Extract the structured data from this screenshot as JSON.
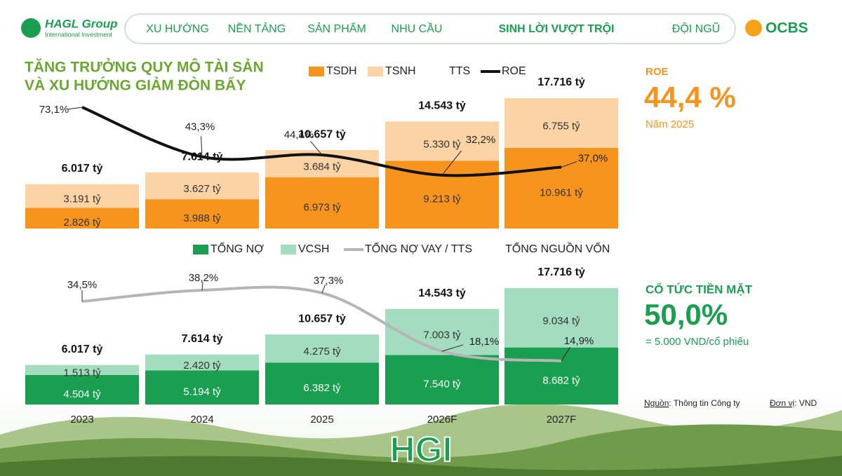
{
  "header": {
    "logo": "HAGL Group",
    "logo_sub": "International Investment",
    "nav": [
      "XU HƯỚNG",
      "NỀN TẢNG",
      "SẢN PHẨM",
      "NHU CẦU",
      "SINH LỜI VƯỢT TRỘI",
      "ĐỘI NGŨ"
    ],
    "brand": "OCBS"
  },
  "chart_data": [
    {
      "type": "bar",
      "stacked": true,
      "title": [
        "TĂNG TRƯỞNG QUY MÔ TÀI SẢN",
        "VÀ XU HƯỚNG GIẢM ĐÒN BẨY"
      ],
      "series": [
        {
          "name": "TSDH",
          "type": "bar",
          "color": "#f7941d",
          "values": [
            2826,
            3988,
            6973,
            9213,
            10961
          ],
          "value_labels": [
            "2.826 tỷ",
            "3.988 tỷ",
            "6.973 tỷ",
            "9.213 tỷ",
            "10.961 tỷ"
          ]
        },
        {
          "name": "TSNH",
          "type": "bar",
          "color": "#fcd3a5",
          "values": [
            3191,
            3627,
            3684,
            5330,
            6755
          ],
          "value_labels": [
            "3.191 tỷ",
            "3.627 tỷ",
            "3.684 tỷ",
            "5.330 tỷ",
            "6.755 tỷ"
          ]
        },
        {
          "name": "TTS",
          "type": "text",
          "values": [
            6017,
            7614,
            10657,
            14543,
            17716
          ],
          "value_labels": [
            "6.017 tỷ",
            "7.614 tỷ",
            "10.657 tỷ",
            "14.543 tỷ",
            "17.716 tỷ"
          ]
        },
        {
          "name": "ROE",
          "type": "line",
          "axis": "y2",
          "color": "#111111",
          "values": [
            73.1,
            43.3,
            44.4,
            32.2,
            37.0
          ],
          "value_labels": [
            "73,1%",
            "43,3%",
            "44,4%",
            "32,2%",
            "37,0%"
          ]
        }
      ]
    },
    {
      "type": "bar",
      "stacked": true,
      "categories": [
        "2023",
        "2024",
        "2025",
        "2026F",
        "2027F"
      ],
      "series": [
        {
          "name": "TỔNG NỢ",
          "type": "bar",
          "color": "#1a9e4f",
          "values": [
            4504,
            5194,
            6382,
            7540,
            8682
          ],
          "value_labels": [
            "4.504 tỷ",
            "5.194 tỷ",
            "6.382 tỷ",
            "7.540 tỷ",
            "8.682 tỷ"
          ]
        },
        {
          "name": "VCSH",
          "type": "bar",
          "color": "#a3dcbf",
          "values": [
            1513,
            2420,
            4275,
            7003,
            9034
          ],
          "value_labels": [
            "1.513 tỷ",
            "2.420 tỷ",
            "4.275 tỷ",
            "7.003 tỷ",
            "9.034 tỷ"
          ]
        },
        {
          "name": "TỔNG NỢ VAY / TTS",
          "type": "line",
          "axis": "y2",
          "color": "#b5b5b5",
          "values": [
            34.5,
            38.2,
            37.3,
            18.1,
            14.9
          ],
          "value_labels": [
            "34,5%",
            "38,2%",
            "37,3%",
            "18,1%",
            "14,9%"
          ]
        },
        {
          "name": "TỔNG NGUỒN VỐN",
          "type": "text",
          "values": [
            6017,
            7614,
            10657,
            14543,
            17716
          ],
          "value_labels": [
            "6.017 tỷ",
            "7.614 tỷ",
            "10.657 tỷ",
            "14.543 tỷ",
            "17.716 tỷ"
          ]
        }
      ]
    }
  ],
  "side": {
    "roe_label": "ROE",
    "roe_value": "44,4 %",
    "roe_year": "Năm 2025",
    "div_label": "CỔ TỨC TIỀN MẶT",
    "div_value": "50,0%",
    "div_note": "= 5.000 VND/cổ phiếu"
  },
  "footer": {
    "source_key": "Nguồn",
    "source": ": Thông tin Công ty",
    "unit_key": "Đơn vị",
    "unit": ": VND",
    "brand": "HGI"
  }
}
